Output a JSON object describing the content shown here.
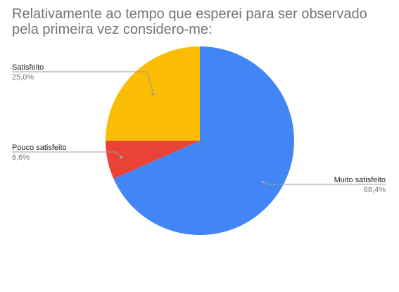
{
  "chart_data": {
    "type": "pie",
    "title": "Relativamente ao tempo que esperei para ser observado pela primeira vez considero-me:",
    "slices": [
      {
        "label": "Muito satisfeito",
        "value": 68.4,
        "value_label": "68,4%",
        "color": "#4285f4",
        "label_side": "right"
      },
      {
        "label": "Pouco satisfeito",
        "value": 6.6,
        "value_label": "6,6%",
        "color": "#ea4335",
        "label_side": "left"
      },
      {
        "label": "Satisfeito",
        "value": 25.0,
        "value_label": "25,0%",
        "color": "#fbbc04",
        "label_side": "left"
      }
    ],
    "start_angle_deg": 0,
    "direction": "clockwise",
    "legend": "labels-outside"
  }
}
